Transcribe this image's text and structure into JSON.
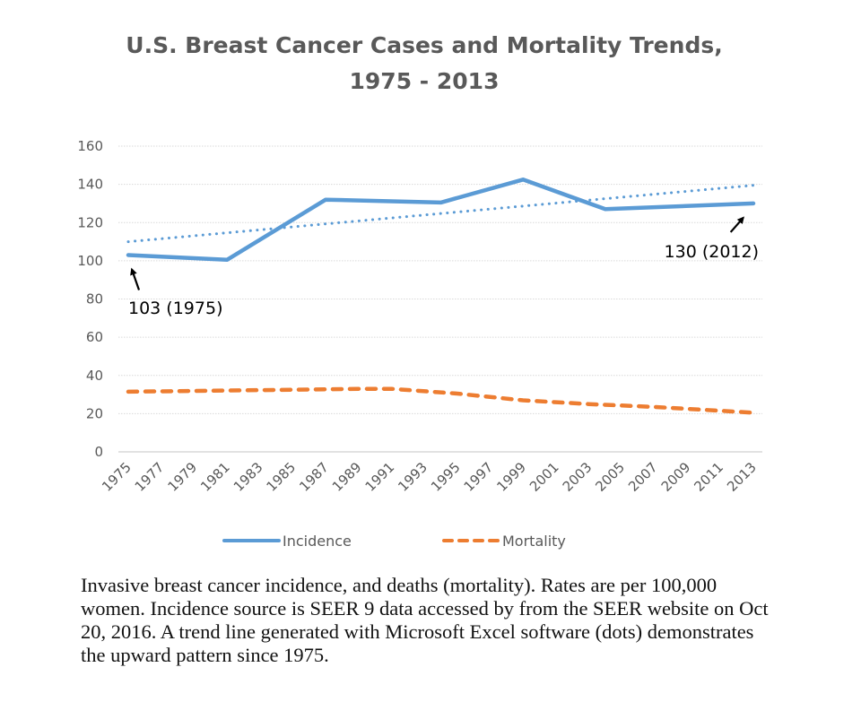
{
  "chart_data": {
    "type": "line",
    "title": "U.S. Breast Cancer Cases and Mortality Trends,",
    "subtitle": "1975 - 2013",
    "xlabel": "",
    "ylabel": "",
    "ylim": [
      0,
      160
    ],
    "y_ticks": [
      0,
      20,
      40,
      60,
      80,
      100,
      120,
      140,
      160
    ],
    "xlim": [
      1975,
      2013
    ],
    "x_ticks": [
      "1975",
      "1977",
      "1979",
      "1981",
      "1983",
      "1985",
      "1987",
      "1989",
      "1991",
      "1993",
      "1995",
      "1997",
      "1999",
      "2001",
      "2003",
      "2005",
      "2007",
      "2009",
      "2011",
      "2013"
    ],
    "grid": true,
    "legend_position": "bottom",
    "series": [
      {
        "name": "Incidence",
        "color": "#5B9BD5",
        "style": "solid",
        "points": [
          [
            1975,
            103
          ],
          [
            1981,
            100.5
          ],
          [
            1987,
            132
          ],
          [
            1994,
            130.5
          ],
          [
            1999,
            142.5
          ],
          [
            2004,
            127
          ],
          [
            2013,
            130
          ]
        ]
      },
      {
        "name": "Mortality",
        "color": "#ED7D31",
        "style": "dashed",
        "points": [
          [
            1975,
            31.5
          ],
          [
            1980,
            32
          ],
          [
            1985,
            32.5
          ],
          [
            1989,
            33
          ],
          [
            1991,
            33
          ],
          [
            1995,
            30.5
          ],
          [
            1999,
            27
          ],
          [
            2003,
            25
          ],
          [
            2007,
            23.5
          ],
          [
            2011,
            21.5
          ],
          [
            2013,
            20.5
          ]
        ]
      },
      {
        "name": "Incidence trend (linear)",
        "color": "#5B9BD5",
        "style": "dotted",
        "in_legend": false,
        "points": [
          [
            1975,
            110
          ],
          [
            2013,
            139.5
          ]
        ]
      }
    ],
    "annotations": [
      {
        "text": "103 (1975)",
        "target": [
          1975,
          103
        ]
      },
      {
        "text": "130 (2012)",
        "target": [
          2012,
          130
        ]
      }
    ]
  },
  "caption": {
    "lines": [
      "Invasive breast cancer incidence, and deaths (mortality). Rates are per 100,000",
      "women. Incidence source is SEER 9 data accessed by from the SEER website on Oct",
      "20, 2016. A trend line generated with Microsoft Excel software (dots) demonstrates",
      "the upward pattern since 1975."
    ]
  }
}
